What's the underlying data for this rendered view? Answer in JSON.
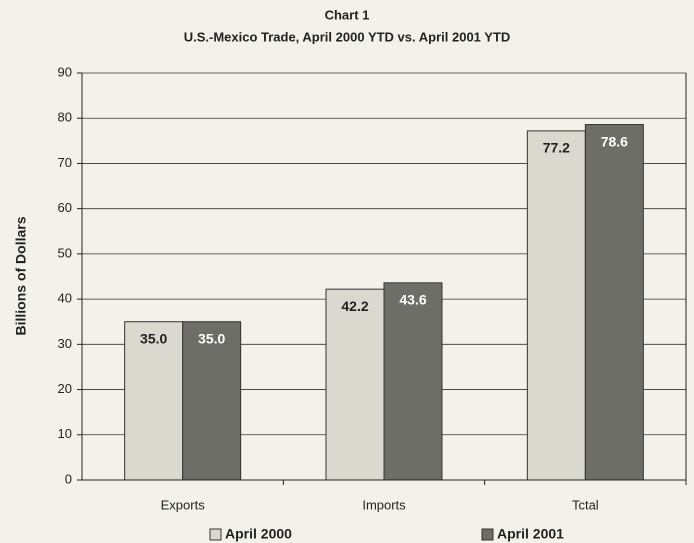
{
  "chart_data": {
    "type": "bar",
    "title": "Chart 1",
    "subtitle": "U.S.-Mexico Trade, April 2000 YTD  vs. April 2001 YTD",
    "y_label": "Billions of Dollars",
    "categories": [
      "Exports",
      "Imports",
      "Tctal"
    ],
    "series": [
      {
        "name": "April 2000",
        "color": "#d9d9d0",
        "values": [
          35.0,
          42.2,
          77.2
        ],
        "value_labels": [
          "35.0",
          "42.2",
          "77.2"
        ]
      },
      {
        "name": "April 2001",
        "color": "#6e6e68",
        "values": [
          35.0,
          43.6,
          78.6
        ],
        "value_labels": [
          "35.0",
          "43.6",
          "78.6"
        ]
      }
    ],
    "ylim": [
      0,
      90
    ],
    "yticks": [
      0,
      10,
      20,
      30,
      40,
      50,
      60,
      70,
      80,
      90
    ],
    "grid": true,
    "legend": "bottom"
  }
}
